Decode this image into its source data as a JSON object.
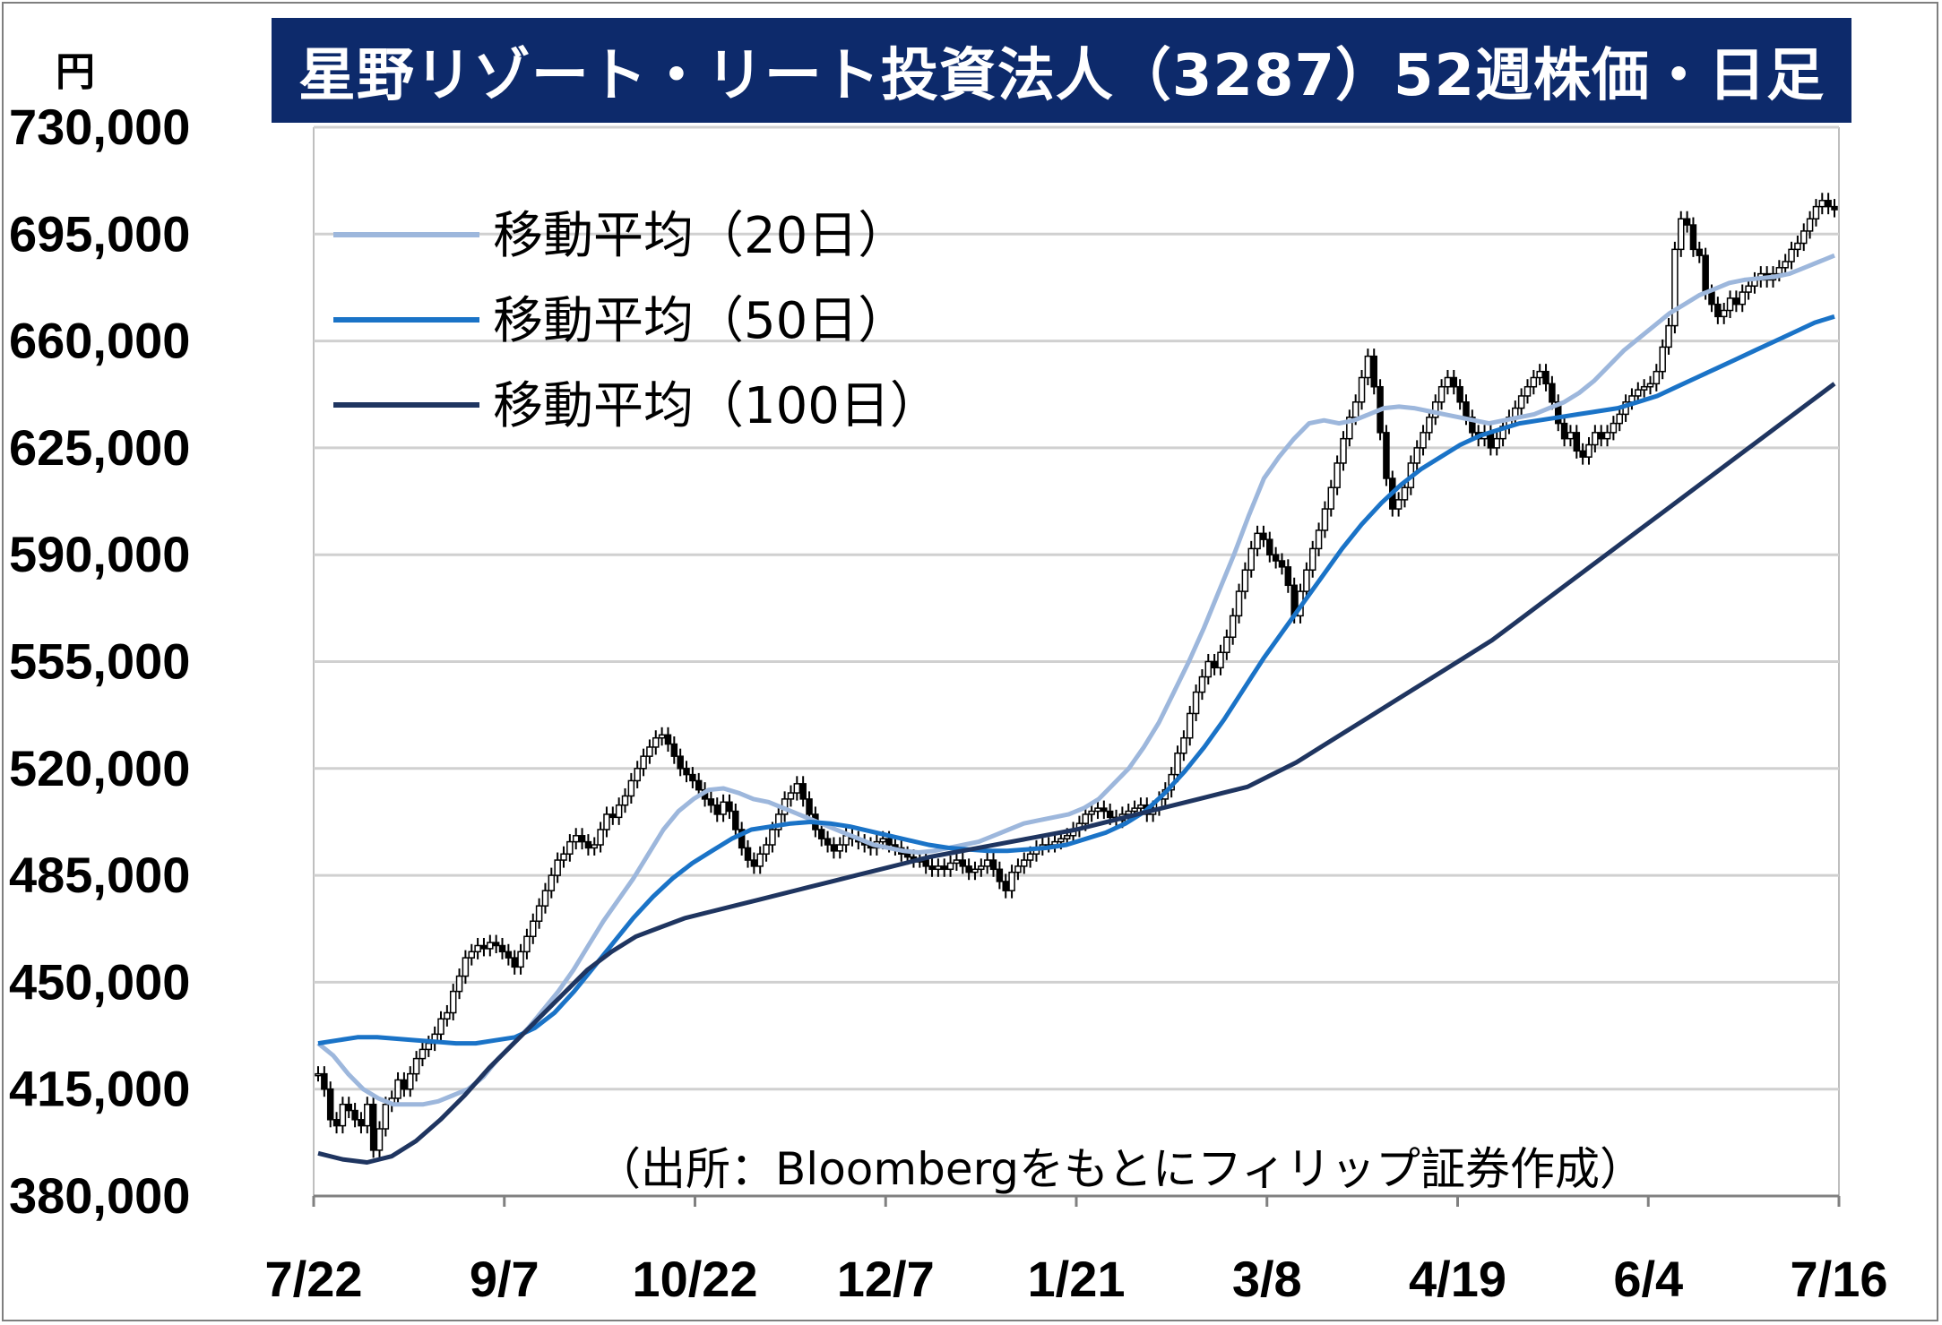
{
  "title": "星野リゾート・リート投資法人（3287）52週株価・日足",
  "unit": "円",
  "source": "（出所：Bloombergをもとにフィリップ証券作成）",
  "chart_data": {
    "type": "line",
    "ylim": [
      380000,
      730000
    ],
    "yticks": [
      "730,000",
      "695,000",
      "660,000",
      "625,000",
      "590,000",
      "555,000",
      "520,000",
      "485,000",
      "450,000",
      "415,000",
      "380,000"
    ],
    "ytick_values": [
      730000,
      695000,
      660000,
      625000,
      590000,
      555000,
      520000,
      485000,
      450000,
      415000,
      380000
    ],
    "xticks": [
      "7/22",
      "9/7",
      "10/22",
      "12/7",
      "1/21",
      "3/8",
      "4/19",
      "6/4",
      "7/16"
    ],
    "grid": true,
    "legend_position": "top-left",
    "price_series": {
      "name": "",
      "close": [
        420000,
        415000,
        405000,
        403000,
        410000,
        408000,
        405000,
        403000,
        410000,
        395000,
        402000,
        410000,
        412000,
        418000,
        415000,
        420000,
        425000,
        428000,
        430000,
        433000,
        438000,
        440000,
        447000,
        452000,
        458000,
        460000,
        462000,
        461000,
        463000,
        462000,
        460000,
        458000,
        455000,
        460000,
        465000,
        470000,
        475000,
        480000,
        485000,
        490000,
        492000,
        496000,
        498000,
        496000,
        494000,
        495000,
        500000,
        505000,
        504000,
        508000,
        511000,
        516000,
        520000,
        524000,
        527000,
        530000,
        531000,
        528000,
        524000,
        520000,
        518000,
        516000,
        513000,
        510000,
        508000,
        505000,
        509000,
        506000,
        500000,
        494000,
        490000,
        488000,
        492000,
        495000,
        500000,
        505000,
        510000,
        512000,
        515000,
        510000,
        505000,
        500000,
        497000,
        495000,
        493000,
        495000,
        498000,
        497000,
        496000,
        495000,
        494000,
        496000,
        497000,
        495000,
        494000,
        492000,
        491000,
        490000,
        490000,
        488000,
        487000,
        488000,
        487000,
        489000,
        490000,
        488000,
        486000,
        487000,
        488000,
        490000,
        487000,
        483000,
        480000,
        486000,
        488000,
        490000,
        492000,
        494000,
        495000,
        495000,
        496000,
        497000,
        498000,
        500000,
        502000,
        505000,
        506000,
        507000,
        506000,
        504000,
        503000,
        505000,
        506000,
        507000,
        508000,
        505000,
        507000,
        510000,
        513000,
        518000,
        525000,
        530000,
        538000,
        545000,
        550000,
        555000,
        553000,
        558000,
        563000,
        570000,
        578000,
        585000,
        592000,
        597000,
        595000,
        590000,
        588000,
        586000,
        580000,
        570000,
        578000,
        585000,
        592000,
        598000,
        605000,
        612000,
        620000,
        628000,
        635000,
        640000,
        648000,
        655000,
        645000,
        630000,
        615000,
        605000,
        608000,
        612000,
        620000,
        625000,
        630000,
        635000,
        640000,
        645000,
        648000,
        645000,
        640000,
        635000,
        630000,
        628000,
        630000,
        625000,
        628000,
        632000,
        635000,
        638000,
        642000,
        645000,
        648000,
        650000,
        646000,
        640000,
        633000,
        628000,
        630000,
        624000,
        622000,
        626000,
        630000,
        628000,
        630000,
        633000,
        636000,
        640000,
        642000,
        644000,
        645000,
        646000,
        650000,
        658000,
        665000,
        690000,
        700000,
        698000,
        690000,
        688000,
        676000,
        672000,
        668000,
        670000,
        674000,
        672000,
        676000,
        678000,
        680000,
        682000,
        680000,
        682000,
        684000,
        686000,
        690000,
        692000,
        696000,
        700000,
        704000,
        706000,
        704000,
        703000
      ]
    },
    "series": [
      {
        "name": "移動平均（20日）",
        "color": "#9db7dc",
        "values": [
          430000,
          426000,
          420000,
          415000,
          412000,
          410000,
          410000,
          410000,
          411000,
          413000,
          415000,
          419000,
          425000,
          430000,
          435000,
          441000,
          447000,
          454000,
          462000,
          470000,
          477000,
          484000,
          492000,
          500000,
          506000,
          510000,
          513000,
          513500,
          512000,
          510000,
          509000,
          507000,
          505000,
          503000,
          501000,
          499000,
          497000,
          495000,
          494000,
          493000,
          492500,
          493000,
          494000,
          495000,
          496000,
          498000,
          500000,
          502000,
          503000,
          504000,
          505000,
          507000,
          510000,
          515000,
          520000,
          527000,
          535000,
          545000,
          555000,
          566000,
          578000,
          590000,
          603000,
          615000,
          622000,
          628000,
          633000,
          634000,
          633000,
          634000,
          636000,
          638000,
          638500,
          638000,
          637000,
          636000,
          635000,
          634000,
          633000,
          634000,
          635000,
          636000,
          638000,
          640000,
          643000,
          647000,
          652000,
          657000,
          661000,
          665000,
          669000,
          672000,
          675000,
          677000,
          679000,
          680000,
          680500,
          681000,
          682000,
          684000,
          686000,
          688000
        ]
      },
      {
        "name": "移動平均（50日）",
        "color": "#1a73c7",
        "values": [
          430000,
          431000,
          432000,
          432000,
          431500,
          431000,
          430500,
          430000,
          430000,
          431000,
          432000,
          435000,
          440000,
          447000,
          455000,
          463000,
          471000,
          478000,
          484000,
          489000,
          493000,
          497000,
          500000,
          501000,
          502000,
          502500,
          502000,
          501000,
          499500,
          498000,
          496500,
          495000,
          494000,
          493500,
          493000,
          493000,
          493500,
          494000,
          495000,
          497000,
          499000,
          502000,
          506000,
          512000,
          519000,
          527000,
          536000,
          546000,
          556000,
          565000,
          574000,
          583000,
          592000,
          600000,
          607000,
          613000,
          618000,
          622000,
          626000,
          629000,
          631000,
          633000,
          634000,
          635000,
          636000,
          637000,
          638000,
          640000,
          642000,
          645000,
          648000,
          651000,
          654000,
          657000,
          660000,
          663000,
          666000,
          668000
        ]
      },
      {
        "name": "移動平均（100日）",
        "color": "#1f3560",
        "values": [
          394000,
          392000,
          391000,
          393000,
          398000,
          405000,
          413000,
          422000,
          430000,
          438000,
          446000,
          454000,
          460000,
          465000,
          468000,
          471000,
          473000,
          475000,
          477000,
          479000,
          481000,
          483000,
          485000,
          487000,
          489000,
          491000,
          492500,
          494000,
          495500,
          497000,
          498500,
          500000,
          502000,
          504000,
          506000,
          508000,
          510000,
          512000,
          514000,
          518000,
          522000,
          527000,
          532000,
          537000,
          542000,
          547000,
          552000,
          557000,
          562000,
          568000,
          574000,
          580000,
          586000,
          592000,
          598000,
          604000,
          610000,
          616000,
          622000,
          628000,
          634000,
          640000,
          646000
        ]
      }
    ]
  }
}
